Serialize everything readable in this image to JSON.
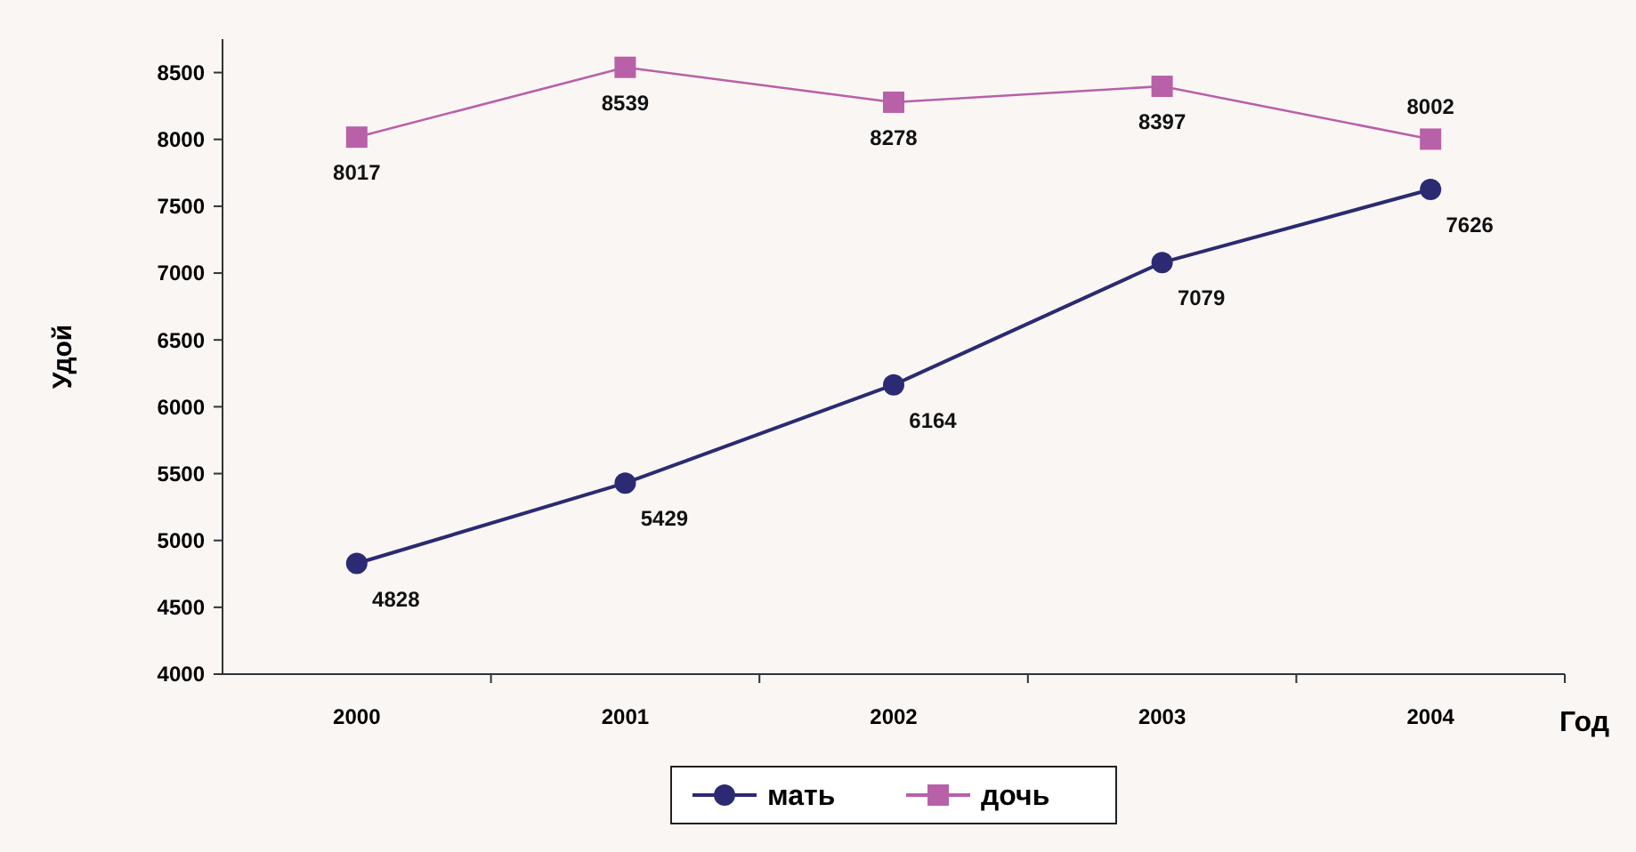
{
  "chart_data": {
    "type": "line",
    "xlabel": "Год",
    "ylabel": "Удой",
    "categories": [
      "2000",
      "2001",
      "2002",
      "2003",
      "2004"
    ],
    "series": [
      {
        "name": "мать",
        "color": "#2b2a72",
        "marker": "circle",
        "values": [
          4828,
          5429,
          6164,
          7079,
          7626
        ]
      },
      {
        "name": "дочь",
        "color": "#b860a8",
        "marker": "square",
        "values": [
          8017,
          8539,
          8278,
          8397,
          8002
        ]
      }
    ],
    "ylim": [
      4000,
      8750
    ],
    "yticks": [
      4000,
      4500,
      5000,
      5500,
      6000,
      6500,
      7000,
      7500,
      8000,
      8500
    ],
    "grid": false,
    "legend": "bottom",
    "data_labels": true
  }
}
